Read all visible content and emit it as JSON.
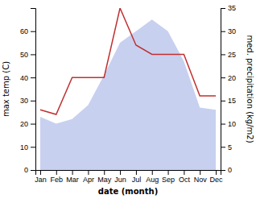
{
  "chart_data": {
    "type": "line",
    "categories": [
      "Jan",
      "Feb",
      "Mar",
      "Apr",
      "May",
      "Jun",
      "Jul",
      "Aug",
      "Sep",
      "Oct",
      "Nov",
      "Dec"
    ],
    "series": [
      {
        "type": "area",
        "color": "#c8d0f0",
        "values": [
          23,
          20,
          22,
          28,
          41,
          55,
          60,
          65,
          60,
          47,
          27,
          26
        ]
      },
      {
        "type": "line",
        "color": "#c03030",
        "axis": "y2",
        "values": [
          13,
          12,
          20,
          20,
          20,
          35,
          27,
          25,
          25,
          25,
          16,
          16
        ]
      }
    ],
    "xlabel": "date (month)",
    "ylabel": "max temp (C)",
    "y2label": "med. precipitation (kg/m2)",
    "ylim": [
      0,
      70
    ],
    "yticks": [
      0,
      10,
      20,
      30,
      40,
      50,
      60
    ],
    "y2lim": [
      0,
      35
    ],
    "y2ticks": [
      0,
      5,
      10,
      15,
      20,
      25,
      30,
      35
    ],
    "grid": false
  }
}
